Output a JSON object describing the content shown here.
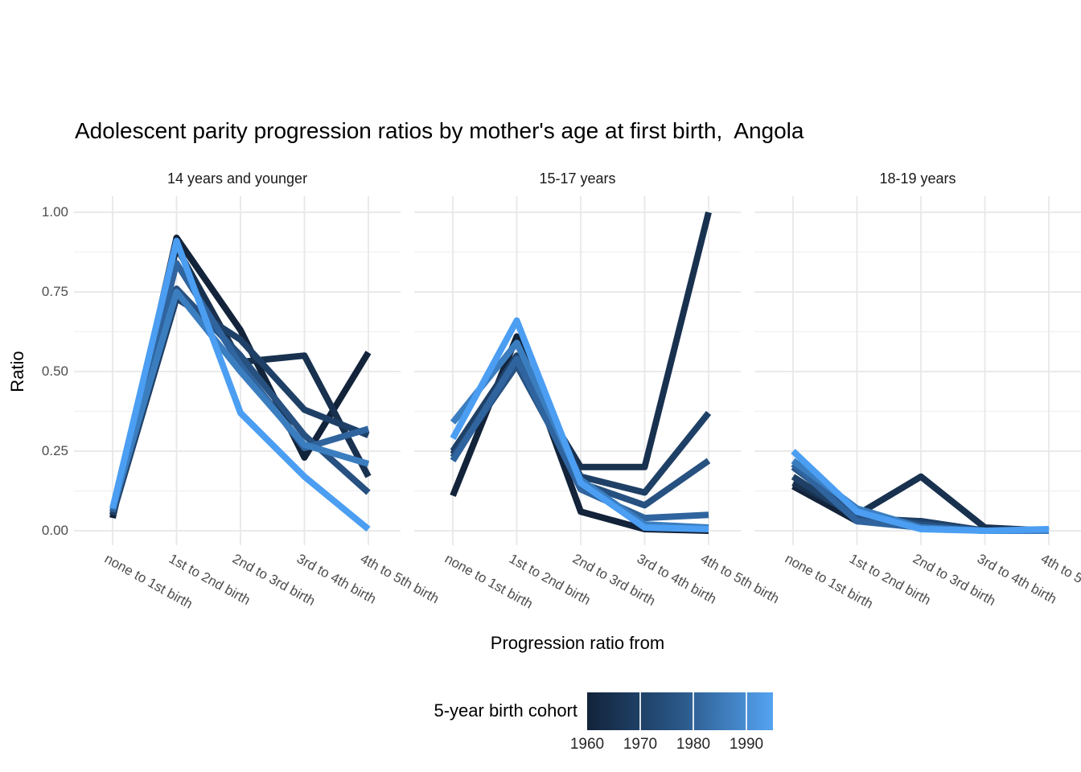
{
  "chart": {
    "title": "Adolescent parity progression ratios by mother's age at first birth,  Angola",
    "x_title": "Progression ratio from",
    "y_title": "Ratio",
    "legend_title": "5-year birth cohort"
  },
  "chart_data": {
    "type": "line",
    "title": "Adolescent parity progression ratios by mother's age at first birth, Angola",
    "xlabel": "Progression ratio from",
    "ylabel": "Ratio",
    "ylim": [
      0,
      1
    ],
    "yticks": [
      0,
      0.25,
      0.5,
      0.75,
      1
    ],
    "grid": true,
    "legend_position": "bottom",
    "categories": [
      "none to 1st birth",
      "1st to 2nd birth",
      "2nd to 3rd birth",
      "3rd to 4th birth",
      "4th to 5th birth"
    ],
    "facets": [
      {
        "label": "14 years and younger",
        "series": [
          {
            "cohort": 1960,
            "color": "#12233a",
            "values": [
              0.04,
              0.92,
              0.63,
              0.23,
              0.56
            ]
          },
          {
            "cohort": 1965,
            "color": "#18314f",
            "values": [
              0.05,
              0.89,
              0.53,
              0.55,
              0.17
            ]
          },
          {
            "cohort": 1970,
            "color": "#1f4066",
            "values": [
              0.05,
              0.73,
              0.6,
              0.38,
              0.3
            ]
          },
          {
            "cohort": 1975,
            "color": "#275181",
            "values": [
              0.06,
              0.76,
              0.55,
              0.3,
              0.12
            ]
          },
          {
            "cohort": 1980,
            "color": "#30649e",
            "values": [
              0.06,
              0.84,
              0.52,
              0.26,
              0.32
            ]
          },
          {
            "cohort": 1985,
            "color": "#3b7ec0",
            "values": [
              0.07,
              0.75,
              0.5,
              0.27,
              0.21
            ]
          },
          {
            "cohort": 1990,
            "color": "#4b9ef2",
            "values": [
              0.07,
              0.91,
              0.37,
              0.17,
              0.005
            ]
          }
        ]
      },
      {
        "label": "15-17 years",
        "series": [
          {
            "cohort": 1960,
            "color": "#12233a",
            "values": [
              0.11,
              0.61,
              0.06,
              0.005,
              0.0
            ]
          },
          {
            "cohort": 1965,
            "color": "#18314f",
            "values": [
              0.24,
              0.53,
              0.2,
              0.2,
              1.0
            ]
          },
          {
            "cohort": 1970,
            "color": "#1f4066",
            "values": [
              0.25,
              0.55,
              0.17,
              0.12,
              0.37
            ]
          },
          {
            "cohort": 1975,
            "color": "#275181",
            "values": [
              0.23,
              0.52,
              0.15,
              0.08,
              0.22
            ]
          },
          {
            "cohort": 1980,
            "color": "#30649e",
            "values": [
              0.22,
              0.54,
              0.13,
              0.04,
              0.05
            ]
          },
          {
            "cohort": 1985,
            "color": "#3b7ec0",
            "values": [
              0.34,
              0.59,
              0.16,
              0.02,
              0.01
            ]
          },
          {
            "cohort": 1990,
            "color": "#4b9ef2",
            "values": [
              0.29,
              0.66,
              0.15,
              0.01,
              0.005
            ]
          }
        ]
      },
      {
        "label": "18-19 years",
        "series": [
          {
            "cohort": 1960,
            "color": "#12233a",
            "values": [
              0.14,
              0.03,
              0.03,
              0.0,
              0.0
            ]
          },
          {
            "cohort": 1965,
            "color": "#18314f",
            "values": [
              0.15,
              0.05,
              0.17,
              0.01,
              0.0
            ]
          },
          {
            "cohort": 1970,
            "color": "#1f4066",
            "values": [
              0.17,
              0.04,
              0.03,
              0.0,
              0.0
            ]
          },
          {
            "cohort": 1975,
            "color": "#275181",
            "values": [
              0.2,
              0.05,
              0.02,
              0.0,
              0.0
            ]
          },
          {
            "cohort": 1980,
            "color": "#30649e",
            "values": [
              0.21,
              0.03,
              0.01,
              0.0,
              0.0
            ]
          },
          {
            "cohort": 1985,
            "color": "#3b7ec0",
            "values": [
              0.22,
              0.07,
              0.01,
              0.0,
              0.0
            ]
          },
          {
            "cohort": 1990,
            "color": "#4b9ef2",
            "values": [
              0.25,
              0.06,
              0.005,
              0.0,
              0.005
            ]
          }
        ]
      }
    ],
    "legend": {
      "title": "5-year birth cohort",
      "tick_years": [
        1960,
        1970,
        1980,
        1990
      ],
      "domain": [
        1960,
        1995
      ],
      "gradient": [
        "#12233a",
        "#2a5787",
        "#54a3f2"
      ]
    }
  }
}
